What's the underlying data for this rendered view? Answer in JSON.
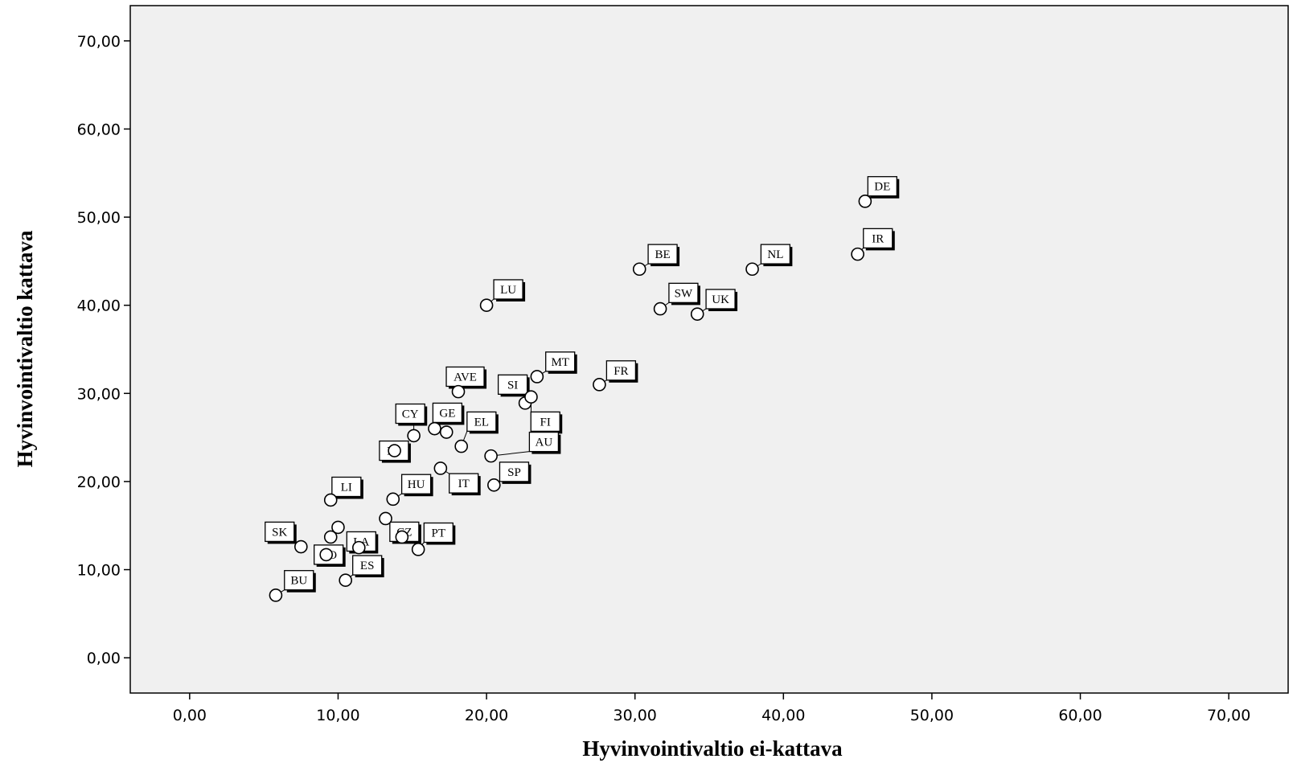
{
  "chart_data": {
    "type": "scatter",
    "title": "",
    "xlabel": "Hyvinvointivaltio ei-kattava",
    "ylabel": "Hyvinvointivaltio kattava",
    "xlim": [
      -4,
      74
    ],
    "ylim": [
      -4,
      74
    ],
    "xticks": [
      0,
      10,
      20,
      30,
      40,
      50,
      60,
      70
    ],
    "yticks": [
      0,
      10,
      20,
      30,
      40,
      50,
      60,
      70
    ],
    "xtick_labels": [
      "0,00",
      "10,00",
      "20,00",
      "30,00",
      "40,00",
      "50,00",
      "60,00",
      "70,00"
    ],
    "ytick_labels": [
      "0,00",
      "10,00",
      "20,00",
      "30,00",
      "40,00",
      "50,00",
      "60,00",
      "70,00"
    ],
    "grid": false,
    "background_color": "#f0f0f0",
    "marker": "open-circle",
    "points": [
      {
        "label": "DE",
        "x": 45.5,
        "y": 51.8,
        "lab_dx": 1.0,
        "lab_dy": 1.7
      },
      {
        "label": "IR",
        "x": 45.0,
        "y": 45.8,
        "lab_dx": 1.2,
        "lab_dy": 1.8
      },
      {
        "label": "NL",
        "x": 37.9,
        "y": 44.1,
        "lab_dx": 1.4,
        "lab_dy": 1.7
      },
      {
        "label": "BE",
        "x": 30.3,
        "y": 44.1,
        "lab_dx": 1.4,
        "lab_dy": 1.7
      },
      {
        "label": "SW",
        "x": 31.7,
        "y": 39.6,
        "lab_dx": 1.4,
        "lab_dy": 1.8
      },
      {
        "label": "UK",
        "x": 34.2,
        "y": 39.0,
        "lab_dx": 1.4,
        "lab_dy": 1.7
      },
      {
        "label": "LU",
        "x": 20.0,
        "y": 40.0,
        "lab_dx": 1.3,
        "lab_dy": 1.8
      },
      {
        "label": "MT",
        "x": 23.4,
        "y": 31.9,
        "lab_dx": 1.4,
        "lab_dy": 1.7
      },
      {
        "label": "FR",
        "x": 27.6,
        "y": 31.0,
        "lab_dx": 1.3,
        "lab_dy": 1.6
      },
      {
        "label": "AVE",
        "x": 18.1,
        "y": 30.2,
        "lab_dx": 0.3,
        "lab_dy": 1.7
      },
      {
        "label": "SI",
        "x": 22.6,
        "y": 28.9,
        "lab_dx": -1.0,
        "lab_dy": 2.1
      },
      {
        "label": "FI",
        "x": 23.0,
        "y": 29.6,
        "lab_dx": 0.8,
        "lab_dy": -2.8
      },
      {
        "label": "CY",
        "x": 15.1,
        "y": 25.2,
        "lab_dx": -0.4,
        "lab_dy": 2.5
      },
      {
        "label": "GE",
        "x": 16.5,
        "y": 26.0,
        "lab_dx": 0.7,
        "lab_dy": 1.8
      },
      {
        "label": "",
        "x": 17.3,
        "y": 25.6
      },
      {
        "label": "EL",
        "x": 18.3,
        "y": 24.0,
        "lab_dx": 1.2,
        "lab_dy": 2.8
      },
      {
        "label": "PL",
        "x": 13.8,
        "y": 23.5,
        "lab_dx": -0.2,
        "lab_dy": 0.0
      },
      {
        "label": "AU",
        "x": 20.3,
        "y": 22.9,
        "lab_dx": 3.4,
        "lab_dy": 1.6
      },
      {
        "label": "IT",
        "x": 16.9,
        "y": 21.5,
        "lab_dx": 1.4,
        "lab_dy": -1.7
      },
      {
        "label": "SP",
        "x": 20.5,
        "y": 19.6,
        "lab_dx": 1.2,
        "lab_dy": 1.5
      },
      {
        "label": "HU",
        "x": 13.7,
        "y": 18.0,
        "lab_dx": 1.4,
        "lab_dy": 1.7
      },
      {
        "label": "LI",
        "x": 9.5,
        "y": 17.9,
        "lab_dx": 0.9,
        "lab_dy": 1.5
      },
      {
        "label": "",
        "x": 13.2,
        "y": 15.8
      },
      {
        "label": "CZ",
        "x": 14.3,
        "y": 13.7,
        "lab_dx": 0.0,
        "lab_dy": 0.6
      },
      {
        "label": "PT",
        "x": 15.4,
        "y": 12.3,
        "lab_dx": 1.2,
        "lab_dy": 1.9
      },
      {
        "label": "",
        "x": 10.0,
        "y": 14.8
      },
      {
        "label": "",
        "x": 9.5,
        "y": 13.7
      },
      {
        "label": "SK",
        "x": 7.5,
        "y": 12.6,
        "lab_dx": -1.6,
        "lab_dy": 1.7
      },
      {
        "label": "LA",
        "x": 11.4,
        "y": 12.5,
        "lab_dx": 0.0,
        "lab_dy": 0.7
      },
      {
        "label": "RO",
        "x": 9.2,
        "y": 11.7,
        "lab_dx": 0.0,
        "lab_dy": 0.0
      },
      {
        "label": "ES",
        "x": 10.5,
        "y": 8.8,
        "lab_dx": 1.3,
        "lab_dy": 1.7
      },
      {
        "label": "BU",
        "x": 5.8,
        "y": 7.1,
        "lab_dx": 1.4,
        "lab_dy": 1.7
      }
    ]
  }
}
